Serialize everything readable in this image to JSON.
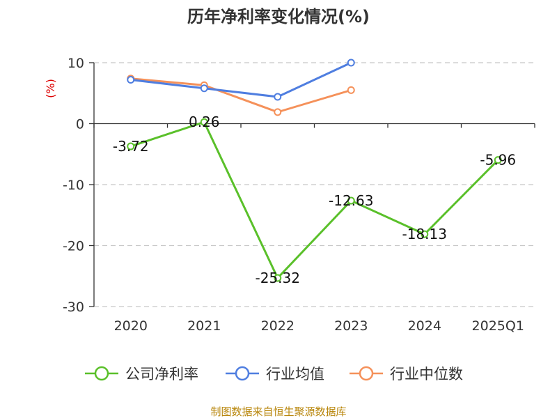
{
  "chart_data": {
    "type": "line",
    "title": "历年净利率变化情况(%)",
    "ylabel": "(%)",
    "categories": [
      "2020",
      "2021",
      "2022",
      "2023",
      "2024",
      "2025Q1"
    ],
    "ylim": [
      -30,
      10
    ],
    "yticks": [
      10,
      0,
      -10,
      -20,
      -30
    ],
    "grid": true,
    "legend_position": "bottom",
    "series": [
      {
        "name": "公司净利率",
        "color": "#5ac02a",
        "values": [
          -3.72,
          0.26,
          -25.32,
          -12.63,
          -18.13,
          -5.96
        ],
        "labels": [
          "-3.72",
          "0.26",
          "-25.32",
          "-12.63",
          "-18.13",
          "-5.96"
        ]
      },
      {
        "name": "行业均值",
        "color": "#4f7ee0",
        "values": [
          7.2,
          5.8,
          4.4,
          10.0,
          null,
          null
        ]
      },
      {
        "name": "行业中位数",
        "color": "#f5915a",
        "values": [
          7.4,
          6.3,
          1.9,
          5.5,
          null,
          null
        ]
      }
    ]
  },
  "source_note": "制图数据来自恒生聚源数据库"
}
